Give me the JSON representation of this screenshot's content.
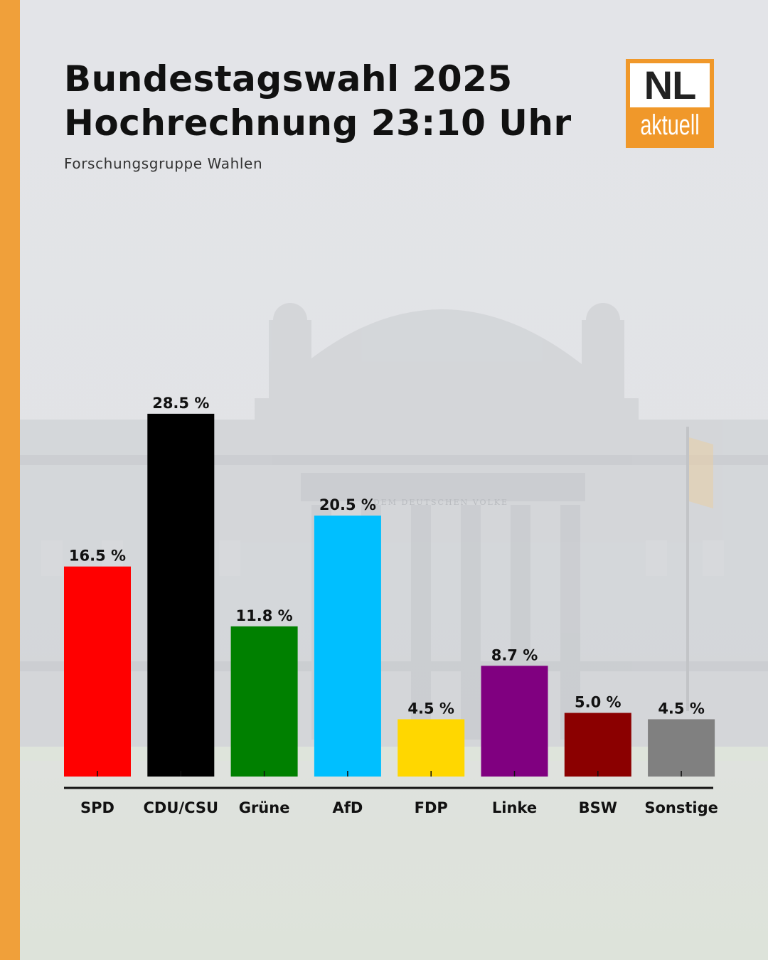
{
  "header": {
    "title_line1": "Bundestagswahl 2025",
    "title_line2": "Hochrechnung 23:10 Uhr",
    "source": "Forschungsgruppe Wahlen"
  },
  "logo": {
    "top_text": "NL",
    "bottom_text": "aktuell",
    "background_color": "#f0982a"
  },
  "background": {
    "accent_color": "#f0a03a",
    "building_engraving": "DEM DEUTSCHEN VOLKE"
  },
  "chart_data": {
    "type": "bar",
    "categories": [
      "SPD",
      "CDU/CSU",
      "Grüne",
      "AfD",
      "FDP",
      "Linke",
      "BSW",
      "Sonstige"
    ],
    "values": [
      16.5,
      28.5,
      11.8,
      20.5,
      4.5,
      8.7,
      5.0,
      4.5
    ],
    "value_labels": [
      "16.5 %",
      "28.5 %",
      "11.8 %",
      "20.5 %",
      "4.5 %",
      "8.7 %",
      "5.0 %",
      "4.5 %"
    ],
    "colors": [
      "#ff0000",
      "#000000",
      "#008000",
      "#00bfff",
      "#ffd700",
      "#800080",
      "#8b0000",
      "#808080"
    ],
    "title": "Bundestagswahl 2025 Hochrechnung 23:10 Uhr",
    "xlabel": "",
    "ylabel": "",
    "ylim": [
      0,
      30
    ],
    "grid": false,
    "legend": "none"
  }
}
